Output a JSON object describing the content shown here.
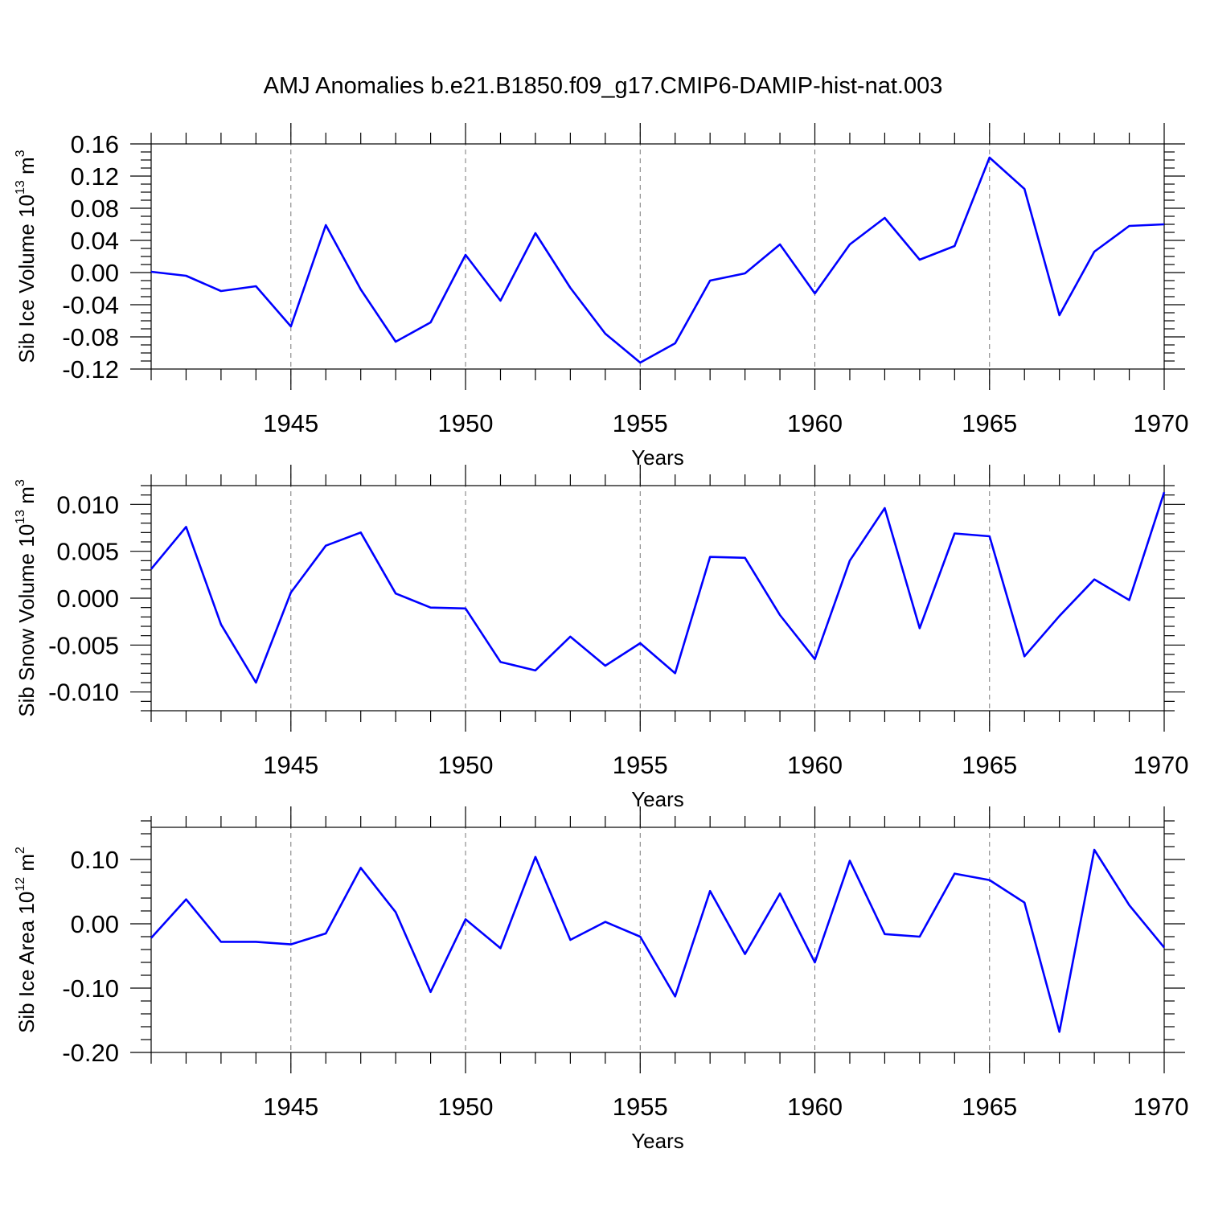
{
  "title": "AMJ Anomalies b.e21.B1850.f09_g17.CMIP6-DAMIP-hist-nat.003",
  "colors": {
    "line": "#0000ff",
    "grid": "#777777",
    "axis": "#000000"
  },
  "chart_data": [
    {
      "type": "line",
      "ylabel_main": "Sib Ice Volume 10",
      "ylabel_exp": "13",
      "ylabel_unit": " m",
      "ylabel_unit_exp": "3",
      "xlabel": "Years",
      "xlim": [
        1941,
        1970
      ],
      "ylim": [
        -0.12,
        0.16
      ],
      "yticks": [
        -0.12,
        -0.08,
        -0.04,
        0.0,
        0.04,
        0.08,
        0.12,
        0.16
      ],
      "ytick_labels": [
        "-0.12",
        "-0.08",
        "-0.04",
        "0.00",
        "0.04",
        "0.08",
        "0.12",
        "0.16"
      ],
      "yminor": 0.01,
      "xticks": [
        1945,
        1950,
        1955,
        1960,
        1965,
        1970
      ],
      "xtick_labels": [
        "1945",
        "1950",
        "1955",
        "1960",
        "1965",
        "1970"
      ],
      "grid_x": [
        1945,
        1950,
        1955,
        1960,
        1965
      ],
      "x": [
        1941,
        1942,
        1943,
        1944,
        1945,
        1946,
        1947,
        1948,
        1949,
        1950,
        1951,
        1952,
        1953,
        1954,
        1955,
        1956,
        1957,
        1958,
        1959,
        1960,
        1961,
        1962,
        1963,
        1964,
        1965,
        1966,
        1967,
        1968,
        1969,
        1970
      ],
      "values": [
        0.001,
        -0.004,
        -0.023,
        -0.017,
        -0.067,
        0.059,
        -0.021,
        -0.086,
        -0.062,
        0.022,
        -0.035,
        0.049,
        -0.019,
        -0.076,
        -0.112,
        -0.088,
        -0.01,
        -0.001,
        0.035,
        -0.026,
        0.035,
        0.068,
        0.016,
        0.033,
        0.143,
        0.104,
        -0.053,
        0.026,
        0.058,
        0.06
      ]
    },
    {
      "type": "line",
      "ylabel_main": "Sib Snow Volume 10",
      "ylabel_exp": "13",
      "ylabel_unit": " m",
      "ylabel_unit_exp": "3",
      "xlabel": "Years",
      "xlim": [
        1941,
        1970
      ],
      "ylim": [
        -0.012,
        0.012
      ],
      "yticks": [
        -0.01,
        -0.005,
        0.0,
        0.005,
        0.01
      ],
      "ytick_labels": [
        "-0.010",
        "-0.005",
        "0.000",
        "0.005",
        "0.010"
      ],
      "yminor": 0.001,
      "xticks": [
        1945,
        1950,
        1955,
        1960,
        1965,
        1970
      ],
      "xtick_labels": [
        "1945",
        "1950",
        "1955",
        "1960",
        "1965",
        "1970"
      ],
      "grid_x": [
        1945,
        1950,
        1955,
        1960,
        1965
      ],
      "x": [
        1941,
        1942,
        1943,
        1944,
        1945,
        1946,
        1947,
        1948,
        1949,
        1950,
        1951,
        1952,
        1953,
        1954,
        1955,
        1956,
        1957,
        1958,
        1959,
        1960,
        1961,
        1962,
        1963,
        1964,
        1965,
        1966,
        1967,
        1968,
        1969,
        1970
      ],
      "values": [
        0.0031,
        0.0076,
        -0.0028,
        -0.009,
        0.0006,
        0.0056,
        0.007,
        0.0005,
        -0.001,
        -0.0011,
        -0.0068,
        -0.0077,
        -0.0041,
        -0.0072,
        -0.0048,
        -0.008,
        0.0044,
        0.0043,
        -0.0018,
        -0.0065,
        0.004,
        0.0096,
        -0.0032,
        0.0069,
        0.0066,
        -0.0062,
        -0.0019,
        0.002,
        -0.0002,
        0.0113
      ]
    },
    {
      "type": "line",
      "ylabel_main": "Sib Ice Area 10",
      "ylabel_exp": "12",
      "ylabel_unit": " m",
      "ylabel_unit_exp": "2",
      "xlabel": "Years",
      "xlim": [
        1941,
        1970
      ],
      "ylim": [
        -0.2,
        0.15
      ],
      "yticks": [
        -0.2,
        -0.1,
        0.0,
        0.1
      ],
      "ytick_labels": [
        "-0.20",
        "-0.10",
        "0.00",
        "0.10"
      ],
      "yminor": 0.02,
      "xticks": [
        1945,
        1950,
        1955,
        1960,
        1965,
        1970
      ],
      "xtick_labels": [
        "1945",
        "1950",
        "1955",
        "1960",
        "1965",
        "1970"
      ],
      "grid_x": [
        1945,
        1950,
        1955,
        1960,
        1965
      ],
      "x": [
        1941,
        1942,
        1943,
        1944,
        1945,
        1946,
        1947,
        1948,
        1949,
        1950,
        1951,
        1952,
        1953,
        1954,
        1955,
        1956,
        1957,
        1958,
        1959,
        1960,
        1961,
        1962,
        1963,
        1964,
        1965,
        1966,
        1967,
        1968,
        1969,
        1970
      ],
      "values": [
        -0.022,
        0.038,
        -0.028,
        -0.028,
        -0.032,
        -0.015,
        0.087,
        0.018,
        -0.106,
        0.007,
        -0.038,
        0.104,
        -0.025,
        0.003,
        -0.02,
        -0.113,
        0.051,
        -0.047,
        0.047,
        -0.06,
        0.098,
        -0.016,
        -0.02,
        0.078,
        0.068,
        0.033,
        -0.168,
        0.115,
        0.029,
        -0.037
      ]
    }
  ]
}
